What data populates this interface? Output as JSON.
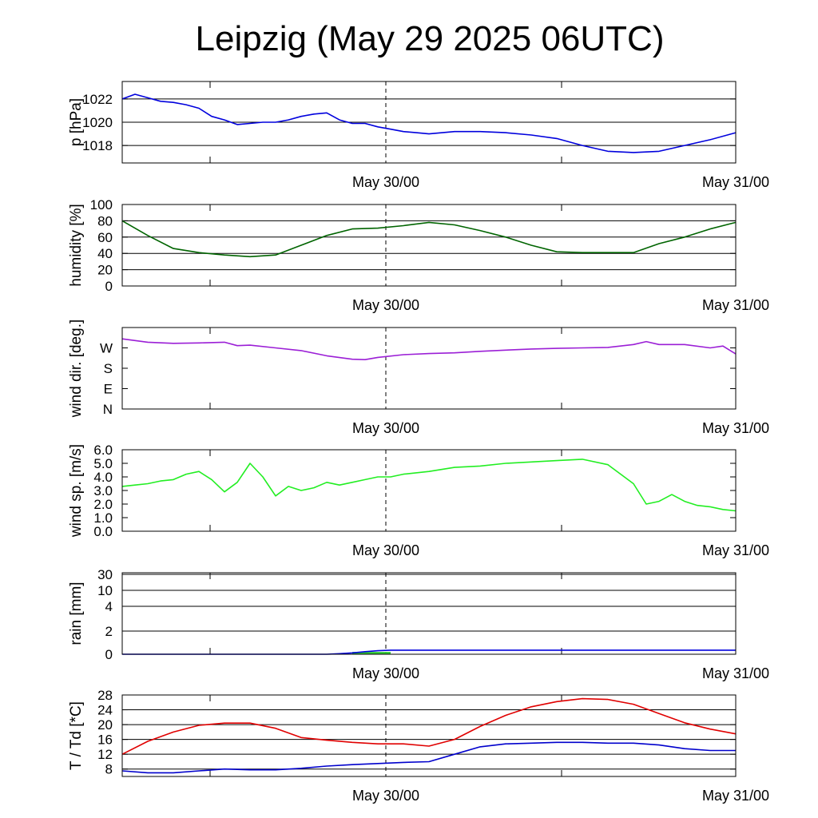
{
  "title": "Leipzig (May 29 2025 06UTC)",
  "colors": {
    "pressure": "#0000dd",
    "humidity": "#006400",
    "wind_dir": "#9b1fd6",
    "wind_speed": "#22ee22",
    "rain": "#0000dd",
    "rain_fill": "#33cc33",
    "temperature": "#e00000",
    "dewpoint": "#0000cc"
  },
  "chart_data": [
    {
      "type": "line",
      "name": "pressure",
      "ylabel": "p [hPa]",
      "xlabels": [
        "May 30/00",
        "May 31/00"
      ],
      "ylim": [
        1016.5,
        1023.5
      ],
      "yticks": [
        1018,
        1020,
        1022
      ],
      "ytick_labels": [
        "1018",
        "1020",
        "1022"
      ],
      "grid": [
        1018,
        1020,
        1022
      ],
      "x_hours": [
        0,
        1,
        2,
        3,
        4,
        5,
        6,
        7,
        8,
        9,
        10,
        11,
        12,
        13,
        14,
        15,
        16,
        17,
        18,
        19,
        20,
        21,
        22,
        23,
        24,
        26,
        28,
        30,
        32,
        34,
        36,
        38,
        40,
        42,
        44,
        46,
        48
      ],
      "series": [
        {
          "color_key": "pressure",
          "values": [
            1022.0,
            1022.4,
            1022.1,
            1021.8,
            1021.7,
            1021.5,
            1021.2,
            1020.5,
            1020.2,
            1019.8,
            1019.9,
            1020.0,
            1020.0,
            1020.2,
            1020.5,
            1020.7,
            1020.8,
            1020.2,
            1019.9,
            1019.9,
            1019.6,
            1019.4,
            1019.2,
            1019.1,
            1019.0,
            1019.2,
            1019.2,
            1019.1,
            1018.9,
            1018.6,
            1018.0,
            1017.5,
            1017.4,
            1017.5,
            1018.0,
            1018.5,
            1019.1
          ]
        }
      ]
    },
    {
      "type": "line",
      "name": "humidity",
      "ylabel": "humidity [%]",
      "xlabels": [
        "May 30/00",
        "May 31/00"
      ],
      "ylim": [
        0,
        100
      ],
      "yticks": [
        0,
        20,
        40,
        60,
        80,
        100
      ],
      "ytick_labels": [
        "0",
        "20",
        "40",
        "60",
        "80",
        "100"
      ],
      "grid": [
        20,
        40,
        60,
        80
      ],
      "x_hours": [
        0,
        2,
        4,
        6,
        8,
        10,
        12,
        14,
        16,
        18,
        20,
        22,
        24,
        26,
        28,
        30,
        32,
        34,
        36,
        38,
        40,
        42,
        44,
        46,
        48
      ],
      "series": [
        {
          "color_key": "humidity",
          "values": [
            80,
            62,
            46,
            41,
            38,
            36,
            38,
            50,
            62,
            70,
            71,
            74,
            78,
            75,
            68,
            60,
            50,
            42,
            41,
            41,
            41,
            52,
            60,
            70,
            78
          ]
        }
      ]
    },
    {
      "type": "line",
      "name": "wind direction",
      "ylabel": "wind dir. [deg.]",
      "xlabels": [
        "May 30/00",
        "May 31/00"
      ],
      "ylim": [
        0,
        360
      ],
      "yticks": [
        0,
        90,
        180,
        270
      ],
      "ytick_labels": [
        "N",
        "E",
        "S",
        "W"
      ],
      "grid": [],
      "x_hours": [
        0,
        2,
        4,
        6,
        8,
        9,
        10,
        12,
        14,
        16,
        18,
        19,
        20,
        22,
        24,
        26,
        28,
        30,
        32,
        34,
        36,
        38,
        40,
        41,
        42,
        44,
        46,
        47,
        48
      ],
      "series": [
        {
          "color_key": "wind_dir",
          "values": [
            310,
            295,
            290,
            292,
            295,
            280,
            282,
            270,
            258,
            235,
            220,
            218,
            228,
            240,
            245,
            248,
            255,
            260,
            265,
            268,
            270,
            272,
            285,
            298,
            285,
            285,
            270,
            278,
            243
          ]
        }
      ]
    },
    {
      "type": "line",
      "name": "wind speed",
      "ylabel": "wind sp. [m/s]",
      "xlabels": [
        "May 30/00",
        "May 31/00"
      ],
      "ylim": [
        0,
        6
      ],
      "yticks": [
        0,
        1,
        2,
        3,
        4,
        5,
        6
      ],
      "ytick_labels": [
        "0.0",
        "1.0",
        "2.0",
        "3.0",
        "4.0",
        "5.0",
        "6.0"
      ],
      "grid": [],
      "x_hours": [
        0,
        1,
        2,
        3,
        4,
        5,
        6,
        7,
        8,
        9,
        10,
        11,
        12,
        13,
        14,
        15,
        16,
        17,
        18,
        19,
        20,
        21,
        22,
        24,
        26,
        28,
        30,
        32,
        34,
        36,
        38,
        40,
        41,
        42,
        43,
        44,
        45,
        46,
        47,
        48
      ],
      "series": [
        {
          "color_key": "wind_speed",
          "values": [
            3.3,
            3.4,
            3.5,
            3.7,
            3.8,
            4.2,
            4.4,
            3.8,
            2.9,
            3.6,
            5.0,
            4.0,
            2.6,
            3.3,
            3.0,
            3.2,
            3.6,
            3.4,
            3.6,
            3.8,
            4.0,
            4.0,
            4.2,
            4.4,
            4.7,
            4.8,
            5.0,
            5.1,
            5.2,
            5.3,
            4.9,
            3.5,
            2.0,
            2.2,
            2.7,
            2.2,
            1.9,
            1.8,
            1.6,
            1.5
          ]
        }
      ]
    },
    {
      "type": "area",
      "name": "rain",
      "ylabel": "rain [mm]",
      "xlabels": [
        "May 30/00",
        "May 31/00"
      ],
      "scale": "nonlinear",
      "yticks": [
        0,
        2,
        4,
        10,
        30
      ],
      "ytick_labels": [
        "0",
        "2",
        "4",
        "10",
        "30"
      ],
      "grid": [
        2,
        4,
        10,
        30
      ],
      "x_hours": [
        0,
        16,
        17,
        18,
        19,
        20,
        21,
        22,
        48
      ],
      "series": [
        {
          "color_key": "rain",
          "values": [
            0,
            0,
            0.05,
            0.12,
            0.22,
            0.3,
            0.35,
            0.35,
            0.35
          ]
        }
      ],
      "bars": [
        {
          "from_hour": 18,
          "to_hour": 21,
          "value": 0.2,
          "color_key": "rain_fill"
        }
      ]
    },
    {
      "type": "line",
      "name": "temperature / dewpoint",
      "ylabel": "T / Td [*C]",
      "xlabels": [
        "May 30/00",
        "May 31/00"
      ],
      "ylim": [
        6,
        28
      ],
      "yticks": [
        8,
        12,
        16,
        20,
        24,
        28
      ],
      "ytick_labels": [
        "8",
        "12",
        "16",
        "20",
        "24",
        "28"
      ],
      "grid": [
        8,
        12,
        16,
        20,
        24
      ],
      "x_hours": [
        0,
        2,
        4,
        6,
        8,
        10,
        12,
        14,
        16,
        18,
        20,
        22,
        24,
        26,
        28,
        30,
        32,
        34,
        36,
        38,
        40,
        42,
        44,
        46,
        48
      ],
      "series": [
        {
          "color_key": "temperature",
          "values": [
            12.0,
            15.5,
            18.0,
            19.8,
            20.4,
            20.4,
            19.0,
            16.5,
            15.8,
            15.2,
            14.8,
            14.8,
            14.2,
            16.0,
            19.5,
            22.5,
            24.8,
            26.2,
            27.0,
            26.8,
            25.5,
            23.0,
            20.5,
            18.8,
            17.5
          ]
        },
        {
          "color_key": "dewpoint",
          "values": [
            7.5,
            7.0,
            7.0,
            7.5,
            8.0,
            7.8,
            7.8,
            8.2,
            8.8,
            9.2,
            9.5,
            9.8,
            10.0,
            12.0,
            14.0,
            14.8,
            15.0,
            15.2,
            15.2,
            15.0,
            15.0,
            14.5,
            13.5,
            13.0,
            13.0
          ]
        }
      ]
    }
  ]
}
